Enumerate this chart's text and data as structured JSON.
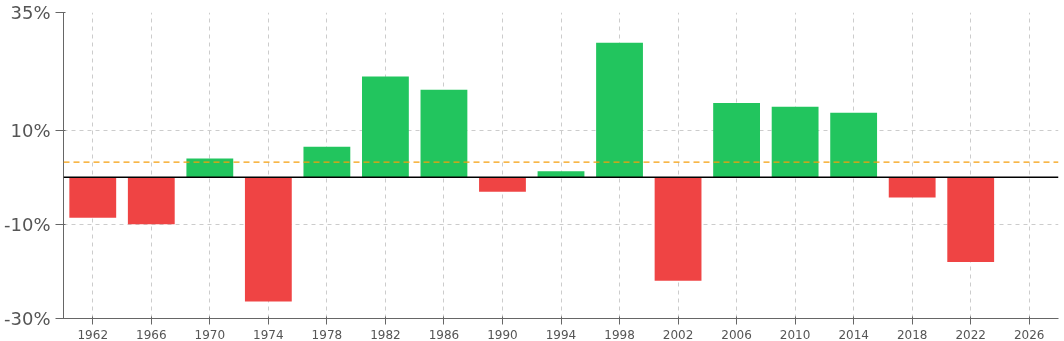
{
  "chart_data": {
    "type": "bar",
    "x": [
      1962,
      1966,
      1970,
      1974,
      1978,
      1982,
      1986,
      1990,
      1994,
      1998,
      2002,
      2006,
      2010,
      2014,
      2018,
      2022
    ],
    "values": [
      -8.6,
      -10.0,
      4.0,
      -26.4,
      6.5,
      21.4,
      18.6,
      -3.1,
      1.3,
      28.6,
      -22.0,
      15.8,
      15.0,
      13.7,
      -4.3,
      -18.0
    ],
    "colors": [
      "#ef4444",
      "#ef4444",
      "#22c55e",
      "#ef4444",
      "#22c55e",
      "#22c55e",
      "#22c55e",
      "#ef4444",
      "#22c55e",
      "#22c55e",
      "#ef4444",
      "#22c55e",
      "#22c55e",
      "#22c55e",
      "#ef4444",
      "#ef4444"
    ],
    "xlim": [
      1960,
      2028
    ],
    "xticks": [
      1962,
      1966,
      1970,
      1974,
      1978,
      1982,
      1986,
      1990,
      1994,
      1998,
      2002,
      2006,
      2010,
      2014,
      2018,
      2022,
      2026
    ],
    "ylim": [
      -30,
      35
    ],
    "yticks": [
      {
        "value": 35,
        "label": "35%"
      },
      {
        "value": 10,
        "label": "10%"
      },
      {
        "value": -10,
        "label": "-10%"
      },
      {
        "value": -30,
        "label": "-30%"
      }
    ],
    "ref_lines": [
      {
        "axis": "y",
        "value": 0,
        "color": "#000000",
        "line_style": "solid"
      },
      {
        "axis": "y",
        "value": 3.2,
        "color": "#f59e0b",
        "line_style": "dashed"
      }
    ],
    "grid": true
  }
}
